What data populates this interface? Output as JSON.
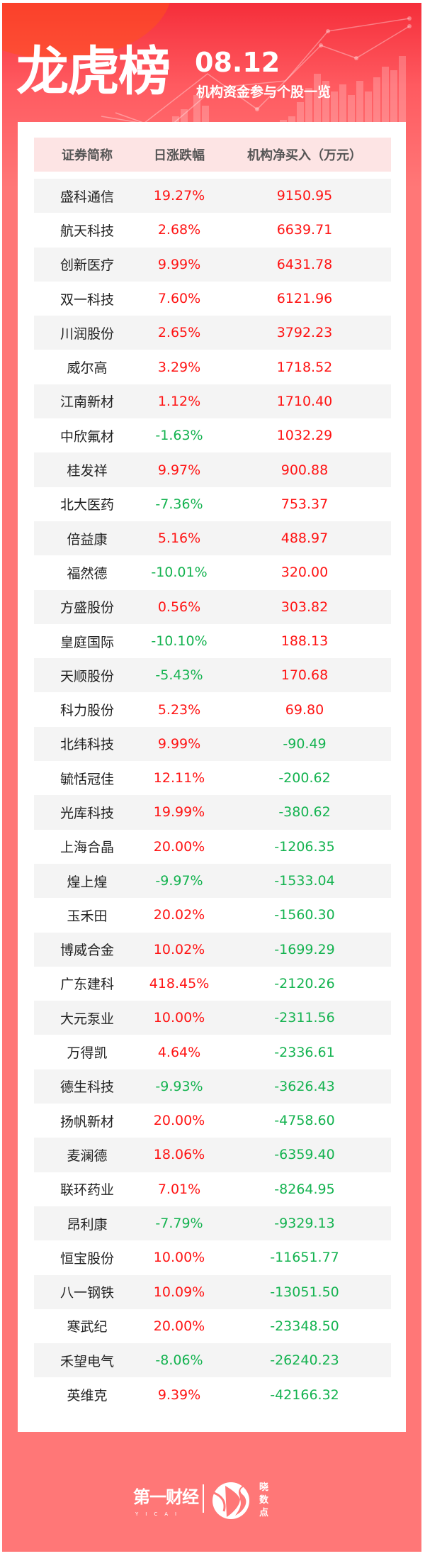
{
  "header": {
    "title": "龙虎榜",
    "date": "08.12",
    "subtitle": "机构资金参与个股一览"
  },
  "table": {
    "columns": [
      "证券简称",
      "日涨跌幅",
      "机构净买入（万元）"
    ],
    "rows": [
      {
        "name": "盛科通信",
        "change": "19.27%",
        "net": "9150.95"
      },
      {
        "name": "航天科技",
        "change": "2.68%",
        "net": "6639.71"
      },
      {
        "name": "创新医疗",
        "change": "9.99%",
        "net": "6431.78"
      },
      {
        "name": "双一科技",
        "change": "7.60%",
        "net": "6121.96"
      },
      {
        "name": "川润股份",
        "change": "2.65%",
        "net": "3792.23"
      },
      {
        "name": "威尔高",
        "change": "3.29%",
        "net": "1718.52"
      },
      {
        "name": "江南新材",
        "change": "1.12%",
        "net": "1710.40"
      },
      {
        "name": "中欣氟材",
        "change": "-1.63%",
        "net": "1032.29"
      },
      {
        "name": "桂发祥",
        "change": "9.97%",
        "net": "900.88"
      },
      {
        "name": "北大医药",
        "change": "-7.36%",
        "net": "753.37"
      },
      {
        "name": "倍益康",
        "change": "5.16%",
        "net": "488.97"
      },
      {
        "name": "福然德",
        "change": "-10.01%",
        "net": "320.00"
      },
      {
        "name": "方盛股份",
        "change": "0.56%",
        "net": "303.82"
      },
      {
        "name": "皇庭国际",
        "change": "-10.10%",
        "net": "188.13"
      },
      {
        "name": "天顺股份",
        "change": "-5.43%",
        "net": "170.68"
      },
      {
        "name": "科力股份",
        "change": "5.23%",
        "net": "69.80"
      },
      {
        "name": "北纬科技",
        "change": "9.99%",
        "net": "-90.49"
      },
      {
        "name": "毓恬冠佳",
        "change": "12.11%",
        "net": "-200.62"
      },
      {
        "name": "光库科技",
        "change": "19.99%",
        "net": "-380.62"
      },
      {
        "name": "上海合晶",
        "change": "20.00%",
        "net": "-1206.35"
      },
      {
        "name": "煌上煌",
        "change": "-9.97%",
        "net": "-1533.04"
      },
      {
        "name": "玉禾田",
        "change": "20.02%",
        "net": "-1560.30"
      },
      {
        "name": "博威合金",
        "change": "10.02%",
        "net": "-1699.29"
      },
      {
        "name": "广东建科",
        "change": "418.45%",
        "net": "-2120.26"
      },
      {
        "name": "大元泵业",
        "change": "10.00%",
        "net": "-2311.56"
      },
      {
        "name": "万得凯",
        "change": "4.64%",
        "net": "-2336.61"
      },
      {
        "name": "德生科技",
        "change": "-9.93%",
        "net": "-3626.43"
      },
      {
        "name": "扬帆新材",
        "change": "20.00%",
        "net": "-4758.60"
      },
      {
        "name": "麦澜德",
        "change": "18.06%",
        "net": "-6359.40"
      },
      {
        "name": "联环药业",
        "change": "7.01%",
        "net": "-8264.95"
      },
      {
        "name": "昂利康",
        "change": "-7.79%",
        "net": "-9329.13"
      },
      {
        "name": "恒宝股份",
        "change": "10.00%",
        "net": "-11651.77"
      },
      {
        "name": "八一钢铁",
        "change": "10.09%",
        "net": "-13051.50"
      },
      {
        "name": "寒武纪",
        "change": "20.00%",
        "net": "-23348.50"
      },
      {
        "name": "禾望电气",
        "change": "-8.06%",
        "net": "-26240.23"
      },
      {
        "name": "英维克",
        "change": "9.39%",
        "net": "-42166.32"
      }
    ]
  },
  "footer": {
    "brand": "第一财经",
    "brand_sub": "YICAI",
    "logo_text": "晓数点"
  },
  "colors": {
    "up": "#ff1414",
    "down": "#14b350",
    "background": "#ff7777",
    "header_row": "#fde4e4"
  }
}
